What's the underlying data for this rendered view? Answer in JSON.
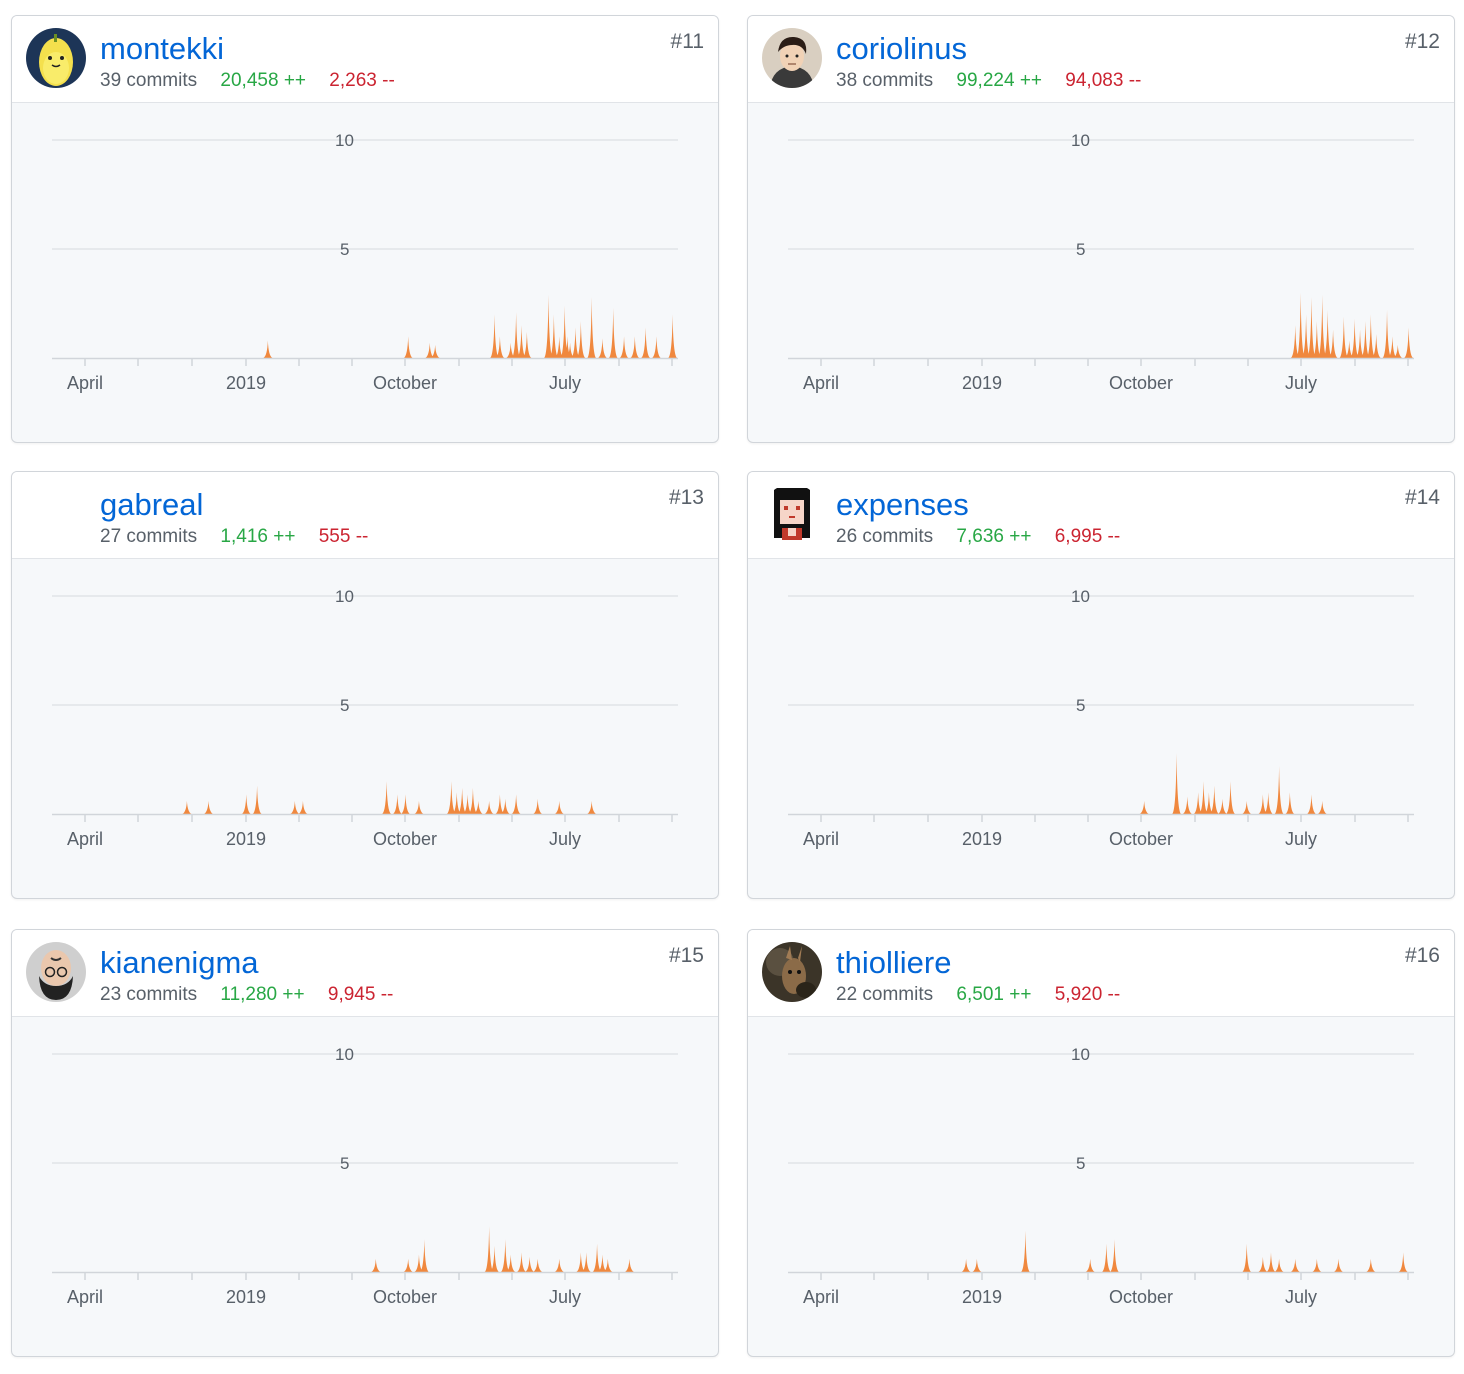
{
  "contributors": [
    {
      "rank": "#11",
      "username": "montekki",
      "commits": "39 commits",
      "additions": "20,458 ++",
      "deletions": "2,263 --",
      "avatar_icon": "banana-avatar-icon",
      "chart_data": {
        "type": "area",
        "ylim": [
          0,
          10
        ],
        "yticks": [
          "10",
          "5"
        ],
        "xticks": [
          "April",
          "2019",
          "October",
          "July"
        ],
        "x": [
          40,
          66,
          70,
          71,
          82,
          83,
          85,
          86,
          87,
          88,
          92,
          93,
          94,
          95,
          95.5,
          96,
          97,
          98,
          100,
          102,
          104,
          106,
          108,
          110,
          112,
          115
        ],
        "values": [
          0.8,
          1.0,
          0.7,
          0.6,
          2.0,
          1.0,
          0.7,
          2.1,
          1.5,
          1.2,
          2.9,
          2.0,
          1.0,
          2.4,
          1.0,
          0.7,
          1.4,
          1.7,
          2.8,
          0.9,
          2.3,
          1.0,
          1.0,
          1.4,
          1.0,
          2.0
        ],
        "color": "#f0883e"
      }
    },
    {
      "rank": "#12",
      "username": "coriolinus",
      "commits": "38 commits",
      "additions": "99,224 ++",
      "deletions": "94,083 --",
      "avatar_icon": "cartoon-man-avatar-icon",
      "chart_data": {
        "type": "area",
        "ylim": [
          0,
          10
        ],
        "yticks": [
          "10",
          "5"
        ],
        "xticks": [
          "April",
          "2019",
          "October",
          "July"
        ],
        "x": [
          94,
          95,
          96,
          97,
          98,
          99,
          100,
          101,
          103,
          104,
          105,
          106,
          107,
          108,
          109,
          111,
          112,
          113,
          115
        ],
        "values": [
          1.5,
          3.0,
          2.0,
          2.8,
          1.7,
          2.9,
          2.2,
          1.3,
          1.9,
          0.8,
          1.8,
          1.3,
          1.7,
          2.0,
          1.1,
          2.2,
          1.0,
          0.6,
          1.4
        ],
        "color": "#f0883e"
      }
    },
    {
      "rank": "#13",
      "username": "gabreal",
      "commits": "27 commits",
      "additions": "1,416 ++",
      "deletions": "555 --",
      "avatar_icon": "blank-avatar-icon",
      "chart_data": {
        "type": "area",
        "ylim": [
          0,
          10
        ],
        "yticks": [
          "10",
          "5"
        ],
        "xticks": [
          "April",
          "2019",
          "October",
          "July"
        ],
        "x": [
          25,
          29,
          36,
          38,
          45,
          46.5,
          62,
          64,
          65.5,
          68,
          74,
          75,
          76,
          77,
          78,
          79,
          81,
          83,
          84,
          86,
          90,
          94,
          100
        ],
        "values": [
          0.6,
          0.6,
          0.9,
          1.3,
          0.6,
          0.6,
          1.5,
          0.9,
          0.9,
          0.6,
          1.5,
          1.0,
          1.2,
          0.9,
          1.2,
          0.6,
          0.6,
          0.9,
          0.7,
          0.9,
          0.7,
          0.6,
          0.6
        ],
        "color": "#f0883e"
      }
    },
    {
      "rank": "#14",
      "username": "expenses",
      "commits": "26 commits",
      "additions": "7,636 ++",
      "deletions": "6,995 --",
      "avatar_icon": "pixel-girl-avatar-icon",
      "chart_data": {
        "type": "area",
        "ylim": [
          0,
          10
        ],
        "yticks": [
          "10",
          "5"
        ],
        "xticks": [
          "April",
          "2019",
          "October",
          "July"
        ],
        "x": [
          66,
          72,
          74,
          76,
          77,
          78,
          79,
          80.5,
          82,
          85,
          88,
          89,
          91,
          93,
          97,
          99
        ],
        "values": [
          0.6,
          2.8,
          0.8,
          1.0,
          1.5,
          1.0,
          1.3,
          0.7,
          1.5,
          0.6,
          0.9,
          1.0,
          2.2,
          1.0,
          0.9,
          0.6
        ],
        "color": "#f0883e"
      }
    },
    {
      "rank": "#15",
      "username": "kianenigma",
      "commits": "23 commits",
      "additions": "11,280 ++",
      "deletions": "9,945 --",
      "avatar_icon": "upside-down-face-avatar-icon",
      "chart_data": {
        "type": "area",
        "ylim": [
          0,
          10
        ],
        "yticks": [
          "10",
          "5"
        ],
        "xticks": [
          "April",
          "2019",
          "October",
          "July"
        ],
        "x": [
          60,
          66,
          68,
          69,
          81,
          82,
          84,
          85,
          87,
          88.5,
          90,
          94,
          98,
          99,
          101,
          102,
          103,
          107
        ],
        "values": [
          0.6,
          0.6,
          0.8,
          1.5,
          2.1,
          1.2,
          1.5,
          0.8,
          0.9,
          0.7,
          0.6,
          0.6,
          0.9,
          0.9,
          1.3,
          0.8,
          0.6,
          0.6
        ],
        "color": "#f0883e"
      }
    },
    {
      "rank": "#16",
      "username": "thiolliere",
      "commits": "22 commits",
      "additions": "6,501 ++",
      "deletions": "5,920 --",
      "avatar_icon": "animal-photo-avatar-icon",
      "chart_data": {
        "type": "area",
        "ylim": [
          0,
          10
        ],
        "yticks": [
          "10",
          "5"
        ],
        "xticks": [
          "April",
          "2019",
          "October",
          "July"
        ],
        "x": [
          33,
          35,
          44,
          56,
          59,
          60.5,
          85,
          88,
          89.5,
          91,
          94,
          98,
          102,
          108,
          114
        ],
        "values": [
          0.6,
          0.6,
          1.9,
          0.6,
          1.3,
          1.5,
          1.3,
          0.7,
          0.9,
          0.6,
          0.6,
          0.6,
          0.6,
          0.6,
          0.9
        ],
        "color": "#f0883e"
      }
    }
  ]
}
